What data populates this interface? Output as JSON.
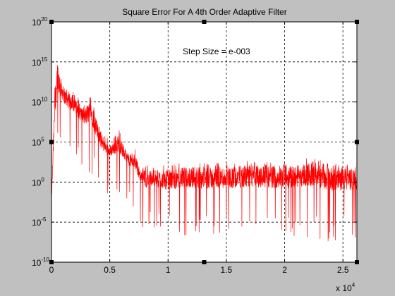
{
  "colors": {
    "figure_bg": "#c0c0c0",
    "axes_bg": "#ffffff",
    "series": "#ff0000",
    "grid": "#000000"
  },
  "chart_data": {
    "type": "line",
    "title": "Square Error For A 4th Order Adaptive Filter",
    "annotation": "Step Size = e-003",
    "x_multiplier_label": "x 10",
    "x_multiplier_exp": "4",
    "xlim": [
      0,
      26200
    ],
    "ylim_log10": [
      -10,
      20
    ],
    "yscale": "log",
    "grid": true,
    "x_ticks": [
      {
        "value": 0,
        "label": "0"
      },
      {
        "value": 5000,
        "label": "0.5"
      },
      {
        "value": 10000,
        "label": "1"
      },
      {
        "value": 15000,
        "label": "1.5"
      },
      {
        "value": 20000,
        "label": "2"
      },
      {
        "value": 25000,
        "label": "2.5"
      }
    ],
    "y_ticks": [
      {
        "exp": -10,
        "base": "10",
        "sup": "-10"
      },
      {
        "exp": -5,
        "base": "10",
        "sup": "-5"
      },
      {
        "exp": 0,
        "base": "10",
        "sup": "0"
      },
      {
        "exp": 5,
        "base": "10",
        "sup": "5"
      },
      {
        "exp": 10,
        "base": "10",
        "sup": "10"
      },
      {
        "exp": 15,
        "base": "10",
        "sup": "15"
      },
      {
        "exp": 20,
        "base": "10",
        "sup": "20"
      }
    ],
    "series": [
      {
        "envelope_x": [
          0,
          300,
          500,
          800,
          1200,
          2000,
          2800,
          3400,
          3800,
          4300,
          5000,
          5800,
          6500,
          7200,
          7600,
          8000,
          9000,
          10000,
          12000,
          14000,
          16000,
          18000,
          20000,
          22000,
          24000,
          26200
        ],
        "envelope_upper_log10": [
          -2,
          12,
          15.5,
          13,
          11.5,
          10.5,
          9,
          10.5,
          8,
          6,
          4.5,
          6,
          3.5,
          3.5,
          1.5,
          1.5,
          1.5,
          1.5,
          2,
          1.8,
          2,
          2.2,
          1.8,
          2.5,
          1.8,
          1.5
        ],
        "envelope_lower_log10": [
          -3,
          5,
          8,
          8.5,
          8,
          7,
          5.5,
          5,
          4,
          2.5,
          2,
          2,
          1,
          0,
          -1,
          -2.5,
          -2.5,
          -3,
          -3,
          -3,
          -3,
          -3,
          -3,
          -3,
          -3.5,
          -3
        ]
      }
    ]
  }
}
